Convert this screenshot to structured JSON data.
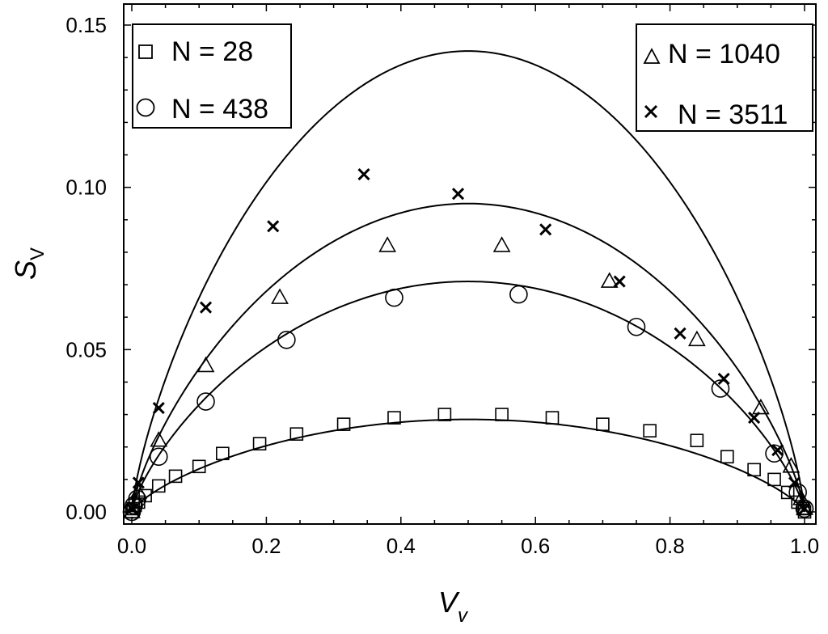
{
  "chart_data": {
    "type": "scatter",
    "xlabel": "V",
    "xlabel_sub": "v",
    "ylabel": "S",
    "ylabel_sub": "V",
    "xlim": [
      0.0,
      1.0
    ],
    "ylim": [
      0.0,
      0.15
    ],
    "x_ticks": [
      0.0,
      0.2,
      0.4,
      0.6,
      0.8,
      1.0
    ],
    "x_tick_labels": [
      "0.0",
      "0.2",
      "0.4",
      "0.6",
      "0.8",
      "1.0"
    ],
    "y_ticks": [
      0.0,
      0.05,
      0.1,
      0.15
    ],
    "y_tick_labels": [
      "0.00",
      "0.05",
      "0.10",
      "0.15"
    ],
    "grid": false,
    "legends": [
      {
        "placement": "top-left",
        "entries": [
          {
            "marker": "square",
            "label": "N = 28"
          },
          {
            "marker": "circle",
            "label": "N = 438"
          }
        ]
      },
      {
        "placement": "top-right",
        "entries": [
          {
            "marker": "triangle",
            "label": "N = 1040"
          },
          {
            "marker": "cross",
            "label": "N = 3511"
          }
        ]
      }
    ],
    "series": [
      {
        "name": "N = 28",
        "marker": "square",
        "points": [
          [
            0.0,
            0.0
          ],
          [
            0.002,
            0.001
          ],
          [
            0.005,
            0.002
          ],
          [
            0.01,
            0.003
          ],
          [
            0.02,
            0.005
          ],
          [
            0.04,
            0.008
          ],
          [
            0.065,
            0.011
          ],
          [
            0.1,
            0.014
          ],
          [
            0.135,
            0.018
          ],
          [
            0.19,
            0.021
          ],
          [
            0.245,
            0.024
          ],
          [
            0.315,
            0.027
          ],
          [
            0.39,
            0.029
          ],
          [
            0.465,
            0.03
          ],
          [
            0.55,
            0.03
          ],
          [
            0.625,
            0.029
          ],
          [
            0.7,
            0.027
          ],
          [
            0.77,
            0.025
          ],
          [
            0.84,
            0.022
          ],
          [
            0.885,
            0.017
          ],
          [
            0.925,
            0.013
          ],
          [
            0.955,
            0.01
          ],
          [
            0.975,
            0.006
          ],
          [
            0.99,
            0.003
          ],
          [
            0.998,
            0.001
          ],
          [
            1.0,
            0.0
          ]
        ]
      },
      {
        "name": "N = 438",
        "marker": "circle",
        "points": [
          [
            0.0,
            0.0
          ],
          [
            0.003,
            0.002
          ],
          [
            0.008,
            0.004
          ],
          [
            0.04,
            0.017
          ],
          [
            0.11,
            0.034
          ],
          [
            0.23,
            0.053
          ],
          [
            0.39,
            0.066
          ],
          [
            0.575,
            0.067
          ],
          [
            0.75,
            0.057
          ],
          [
            0.875,
            0.038
          ],
          [
            0.955,
            0.018
          ],
          [
            0.99,
            0.006
          ],
          [
            1.0,
            0.001
          ]
        ]
      },
      {
        "name": "N = 1040",
        "marker": "triangle",
        "points": [
          [
            0.0,
            0.0
          ],
          [
            0.01,
            0.006
          ],
          [
            0.04,
            0.022
          ],
          [
            0.11,
            0.045
          ],
          [
            0.22,
            0.066
          ],
          [
            0.38,
            0.082
          ],
          [
            0.55,
            0.082
          ],
          [
            0.71,
            0.071
          ],
          [
            0.84,
            0.053
          ],
          [
            0.935,
            0.032
          ],
          [
            0.98,
            0.014
          ],
          [
            0.995,
            0.004
          ],
          [
            1.0,
            0.001
          ]
        ]
      },
      {
        "name": "N = 3511",
        "marker": "cross",
        "points": [
          [
            0.0,
            0.001
          ],
          [
            0.01,
            0.009
          ],
          [
            0.04,
            0.032
          ],
          [
            0.11,
            0.063
          ],
          [
            0.21,
            0.088
          ],
          [
            0.345,
            0.104
          ],
          [
            0.485,
            0.098
          ],
          [
            0.615,
            0.087
          ],
          [
            0.725,
            0.071
          ],
          [
            0.815,
            0.055
          ],
          [
            0.88,
            0.041
          ],
          [
            0.925,
            0.029
          ],
          [
            0.96,
            0.019
          ],
          [
            0.985,
            0.009
          ],
          [
            1.0,
            0.001
          ]
        ]
      }
    ],
    "curves": [
      {
        "shape": "arc",
        "peak_x": 0.5,
        "peak_y": 0.142
      },
      {
        "shape": "arc",
        "peak_x": 0.5,
        "peak_y": 0.095
      },
      {
        "shape": "arc",
        "peak_x": 0.5,
        "peak_y": 0.071
      },
      {
        "shape": "arc",
        "peak_x": 0.5,
        "peak_y": 0.0285
      }
    ]
  }
}
